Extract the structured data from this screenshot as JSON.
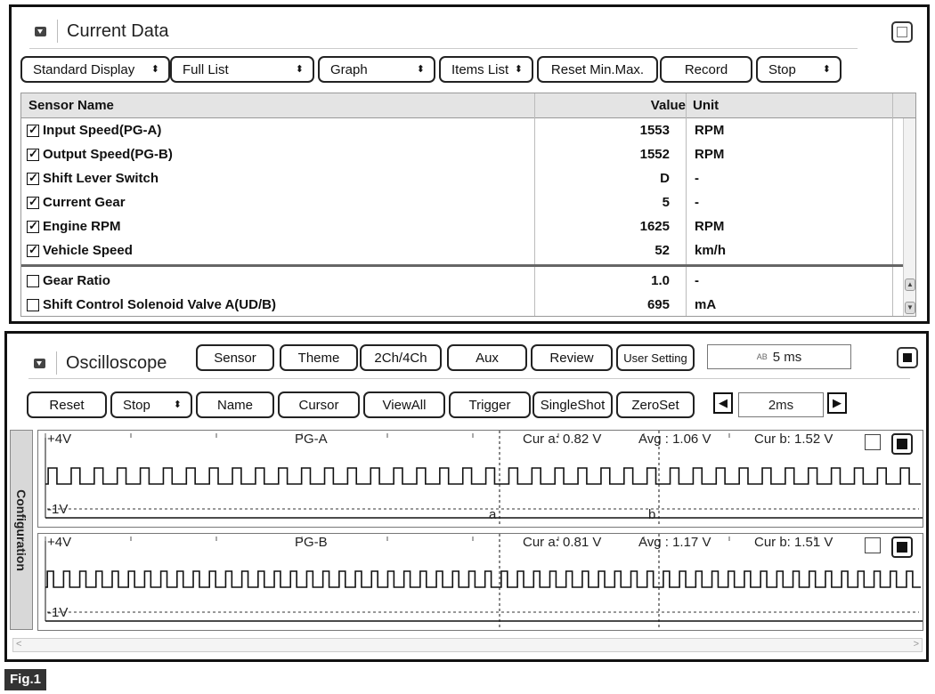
{
  "current_data": {
    "title": "Current Data",
    "toolbar": [
      {
        "label": "Standard Display",
        "has_caret": true
      },
      {
        "label": "Full List",
        "has_caret": true
      },
      {
        "label": "Graph",
        "has_caret": true
      },
      {
        "label": "Items List",
        "has_caret": true
      },
      {
        "label": "Reset Min.Max.",
        "has_caret": false
      },
      {
        "label": "Record",
        "has_caret": false
      },
      {
        "label": "Stop",
        "has_caret": true
      }
    ],
    "columns": {
      "sensor": "Sensor Name",
      "value": "Value",
      "unit": "Unit"
    },
    "rows": [
      {
        "name": "Input Speed(PG-A)",
        "value": "1553",
        "unit": "RPM",
        "checked": true
      },
      {
        "name": "Output Speed(PG-B)",
        "value": "1552",
        "unit": "RPM",
        "checked": true
      },
      {
        "name": "Shift Lever Switch",
        "value": "D",
        "unit": "-",
        "checked": true
      },
      {
        "name": "Current Gear",
        "value": "5",
        "unit": "-",
        "checked": true
      },
      {
        "name": "Engine RPM",
        "value": "1625",
        "unit": "RPM",
        "checked": true
      },
      {
        "name": "Vehicle Speed",
        "value": "52",
        "unit": "km/h",
        "checked": true
      },
      {
        "name": "Gear Ratio",
        "value": "1.0",
        "unit": "-",
        "checked": false
      },
      {
        "name": "Shift Control Solenoid Valve A(UD/B)",
        "value": "695",
        "unit": "mA",
        "checked": false
      }
    ]
  },
  "oscilloscope": {
    "title": "Oscilloscope",
    "top_buttons": [
      "Sensor",
      "Theme",
      "2Ch/4Ch",
      "Aux",
      "Review",
      "User Setting"
    ],
    "time_display": {
      "icon": "AB",
      "value": "5 ms"
    },
    "second_buttons": [
      {
        "label": "Reset",
        "has_caret": false
      },
      {
        "label": "Stop",
        "has_caret": true
      },
      {
        "label": "Name",
        "has_caret": false
      },
      {
        "label": "Cursor",
        "has_caret": false
      },
      {
        "label": "ViewAll",
        "has_caret": false
      },
      {
        "label": "Trigger",
        "has_caret": false
      },
      {
        "label": "SingleShot",
        "has_caret": false
      },
      {
        "label": "ZeroSet",
        "has_caret": false
      }
    ],
    "timebase": "2ms",
    "config_label": "Configuration",
    "cursor_a_label": "a",
    "cursor_b_label": "b",
    "channels": [
      {
        "name": "PG-A",
        "max": "+4V",
        "min": "-1V",
        "cur_a": "Cur a: 0.82 V",
        "avg": "Avg  : 1.06 V",
        "cur_b": "Cur b: 1.52 V",
        "pulses": 38
      },
      {
        "name": "PG-B",
        "max": "+4V",
        "min": "-1V",
        "cur_a": "Cur a: 0.81 V",
        "avg": "Avg  : 1.17 V",
        "cur_b": "Cur b: 1.51 V",
        "pulses": 54
      }
    ]
  },
  "figure_label": "Fig.1"
}
